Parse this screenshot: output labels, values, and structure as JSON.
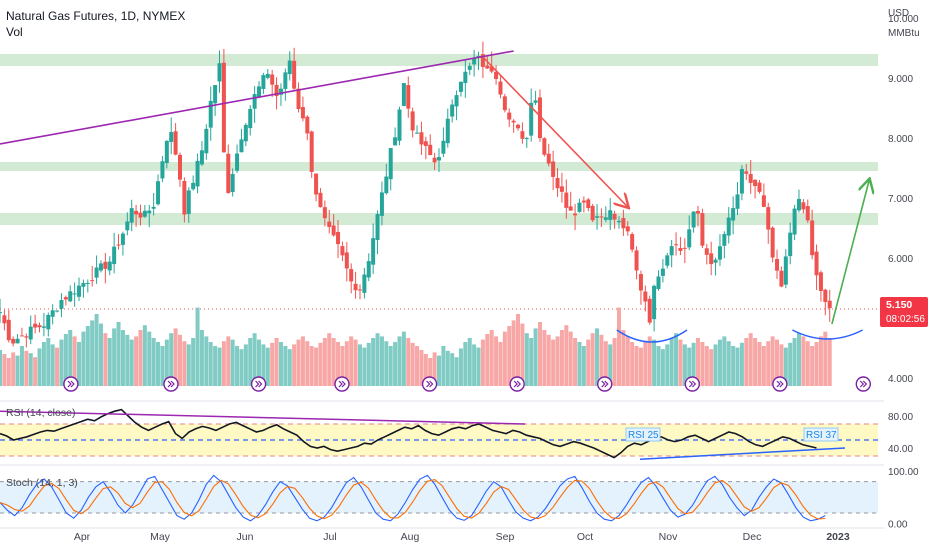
{
  "header": {
    "title": "Natural Gas Futures, 1D, NYMEX",
    "volume_label": "Vol",
    "currency": "USD",
    "unit": "MMBtu"
  },
  "price_badge": {
    "price": "5.150",
    "countdown": "08:02:56",
    "color": "#f23645"
  },
  "rsi_pane": {
    "label": "RSI (14, close)",
    "annotations": [
      "RSI 25",
      "RSI 37"
    ],
    "ticks": [
      "80.00",
      "40.00"
    ]
  },
  "stoch_pane": {
    "label": "Stoch (14, 1, 3)",
    "ticks": [
      "100.00",
      "0.00"
    ]
  },
  "colors": {
    "up": "#26a69a",
    "down": "#ef5350",
    "vol_up": "#80cbc4",
    "vol_down": "#f7a7a5",
    "zone": "#c8e6c9",
    "purple": "#9c27b0",
    "accent_blue": "#2962ff",
    "green_arrow": "#4caf50",
    "rsi_band": "#fff9c4",
    "stoch_band": "#e3f2fd"
  },
  "event_marker_icon": "dividend-arrow-icon",
  "chart_data": {
    "type": "candlestick",
    "title": "Natural Gas Futures, 1D, NYMEX",
    "ylabel": "USD MMBtu",
    "ylim": [
      3.8,
      10.3
    ],
    "y_ticks": [
      10.0,
      9.0,
      8.0,
      7.0,
      6.0,
      4.0
    ],
    "y_tick_labels": [
      "10.000",
      "9.000",
      "8.000",
      "7.000",
      "6.000",
      "4.000"
    ],
    "x_month_labels": [
      "Apr",
      "May",
      "Jun",
      "Jul",
      "Aug",
      "Sep",
      "Oct",
      "Nov",
      "Dec",
      "2023"
    ],
    "grid": false,
    "last_price": 5.15,
    "zones": [
      [
        9.2,
        9.4
      ],
      [
        7.45,
        7.6
      ],
      [
        6.55,
        6.75
      ]
    ],
    "close_path": [
      [
        0,
        5.1
      ],
      [
        5,
        4.6
      ],
      [
        12,
        4.75
      ],
      [
        20,
        4.9
      ],
      [
        28,
        5.3
      ],
      [
        35,
        5.5
      ],
      [
        42,
        5.7
      ],
      [
        50,
        5.95
      ],
      [
        57,
        6.5
      ],
      [
        60,
        6.8
      ],
      [
        66,
        6.7
      ],
      [
        70,
        6.9
      ],
      [
        77,
        8.2
      ],
      [
        81,
        7.6
      ],
      [
        84,
        6.8
      ],
      [
        88,
        7.3
      ],
      [
        92,
        7.8
      ],
      [
        96,
        8.6
      ],
      [
        100,
        9.2
      ],
      [
        103,
        7.0
      ],
      [
        107,
        7.6
      ],
      [
        111,
        8.2
      ],
      [
        116,
        8.7
      ],
      [
        122,
        9.1
      ],
      [
        126,
        8.7
      ],
      [
        129,
        8.9
      ],
      [
        132,
        9.3
      ],
      [
        135,
        8.6
      ],
      [
        139,
        8.3
      ],
      [
        142,
        7.5
      ],
      [
        145,
        6.9
      ],
      [
        149,
        6.5
      ],
      [
        155,
        6.1
      ],
      [
        160,
        5.6
      ],
      [
        164,
        5.5
      ],
      [
        168,
        6.0
      ],
      [
        172,
        6.7
      ],
      [
        176,
        7.4
      ],
      [
        180,
        8.1
      ],
      [
        184,
        8.9
      ],
      [
        187,
        8.3
      ],
      [
        190,
        8.0
      ],
      [
        194,
        7.8
      ],
      [
        198,
        7.6
      ],
      [
        202,
        7.9
      ],
      [
        206,
        8.6
      ],
      [
        210,
        9.0
      ],
      [
        213,
        9.1
      ],
      [
        216,
        9.3
      ],
      [
        219,
        9.3
      ],
      [
        222,
        9.1
      ],
      [
        225,
        9.2
      ],
      [
        228,
        8.8
      ],
      [
        232,
        8.3
      ],
      [
        236,
        8.1
      ],
      [
        240,
        8.0
      ],
      [
        243,
        9.0
      ],
      [
        246,
        8.0
      ],
      [
        250,
        7.6
      ],
      [
        254,
        7.2
      ],
      [
        258,
        6.9
      ],
      [
        262,
        6.8
      ],
      [
        266,
        7.0
      ],
      [
        270,
        6.7
      ],
      [
        274,
        6.7
      ],
      [
        277,
        6.8
      ],
      [
        281,
        6.6
      ],
      [
        285,
        6.5
      ],
      [
        288,
        6.1
      ],
      [
        291,
        5.6
      ],
      [
        294,
        5.3
      ],
      [
        296,
        5.0
      ],
      [
        299,
        5.7
      ],
      [
        302,
        5.9
      ],
      [
        305,
        6.2
      ],
      [
        308,
        6.3
      ],
      [
        311,
        6.0
      ],
      [
        314,
        6.5
      ],
      [
        317,
        6.9
      ],
      [
        320,
        6.2
      ],
      [
        323,
        6.0
      ],
      [
        326,
        5.9
      ],
      [
        329,
        6.3
      ],
      [
        332,
        6.6
      ],
      [
        335,
        6.9
      ],
      [
        338,
        7.4
      ],
      [
        341,
        7.3
      ],
      [
        344,
        7.2
      ],
      [
        347,
        7.0
      ],
      [
        350,
        6.4
      ],
      [
        353,
        5.8
      ],
      [
        356,
        5.5
      ],
      [
        359,
        6.2
      ],
      [
        362,
        6.9
      ],
      [
        365,
        6.9
      ],
      [
        368,
        6.6
      ],
      [
        371,
        5.8
      ],
      [
        374,
        5.4
      ],
      [
        377,
        5.2
      ],
      [
        379,
        5.15
      ]
    ],
    "volume_units": "relative 0-1",
    "volume": [
      0.45,
      0.4,
      0.35,
      0.42,
      0.38,
      0.5,
      0.44,
      0.41,
      0.36,
      0.47,
      0.55,
      0.6,
      0.52,
      0.48,
      0.58,
      0.65,
      0.7,
      0.62,
      0.55,
      0.68,
      0.75,
      0.82,
      0.9,
      0.78,
      0.66,
      0.6,
      0.72,
      0.8,
      0.7,
      0.64,
      0.58,
      0.62,
      0.7,
      0.76,
      0.68,
      0.6,
      0.55,
      0.5,
      0.58,
      0.66,
      0.72,
      0.64,
      0.56,
      0.52,
      0.6,
      0.98,
      0.7,
      0.62,
      0.55,
      0.5,
      0.48,
      0.56,
      0.62,
      0.58,
      0.5,
      0.46,
      0.52,
      0.6,
      0.66,
      0.58,
      0.52,
      0.48,
      0.54,
      0.6,
      0.55,
      0.5,
      0.46,
      0.52,
      0.58,
      0.62,
      0.56,
      0.5,
      0.48,
      0.54,
      0.6,
      0.66,
      0.6,
      0.55,
      0.5,
      0.56,
      0.62,
      0.58,
      0.52,
      0.48,
      0.54,
      0.6,
      0.66,
      0.62,
      0.56,
      0.5,
      0.55,
      0.62,
      0.68,
      0.6,
      0.54,
      0.5
    ],
    "overlays": [
      {
        "type": "trendline",
        "color": "purple",
        "from": [
          0,
          7.9
        ],
        "to": [
          234,
          9.45
        ]
      },
      {
        "type": "trendline",
        "color": "red",
        "from": [
          220,
          9.35
        ],
        "to": [
          286,
          6.85
        ],
        "arrow": true
      },
      {
        "type": "projection_arrow",
        "color": "green",
        "from": [
          379,
          4.9
        ],
        "to": [
          396,
          7.3
        ]
      },
      {
        "type": "arc",
        "color": "blue",
        "from": [
          281,
          4.8
        ],
        "to": [
          313,
          4.8
        ],
        "depth": 4.6
      },
      {
        "type": "arc",
        "color": "blue",
        "from": [
          361,
          4.8
        ],
        "to": [
          393,
          4.8
        ],
        "depth": 4.65
      }
    ],
    "rsi": {
      "ylim": [
        20,
        95
      ],
      "levels": [
        70,
        50,
        30
      ],
      "values": [
        58,
        55,
        50,
        52,
        54,
        57,
        60,
        62,
        61,
        64,
        67,
        70,
        73,
        76,
        74,
        79,
        83,
        86,
        88,
        80,
        72,
        66,
        62,
        66,
        70,
        73,
        58,
        52,
        60,
        64,
        67,
        65,
        62,
        66,
        70,
        72,
        68,
        64,
        60,
        62,
        66,
        69,
        64,
        60,
        56,
        48,
        42,
        40,
        42,
        38,
        36,
        38,
        40,
        42,
        46,
        45,
        50,
        54,
        58,
        62,
        66,
        64,
        68,
        62,
        58,
        56,
        60,
        64,
        66,
        64,
        68,
        70,
        66,
        62,
        60,
        58,
        62,
        60,
        56,
        54,
        52,
        48,
        44,
        42,
        45,
        48,
        46,
        43,
        40,
        36,
        32,
        28,
        34,
        42,
        46,
        44,
        48,
        52,
        54,
        50,
        48,
        50,
        54,
        56,
        52,
        48,
        52,
        56,
        60,
        58,
        54,
        48,
        44,
        42,
        46,
        50,
        54,
        52,
        48,
        44,
        42,
        40
      ]
    },
    "stoch": {
      "ylim": [
        -5,
        110
      ],
      "levels": [
        80,
        20
      ],
      "k": [
        40,
        25,
        15,
        30,
        55,
        75,
        85,
        70,
        45,
        20,
        10,
        25,
        50,
        70,
        80,
        60,
        35,
        20,
        35,
        60,
        85,
        90,
        65,
        40,
        15,
        8,
        20,
        45,
        75,
        92,
        80,
        55,
        30,
        12,
        5,
        15,
        35,
        60,
        80,
        72,
        50,
        28,
        10,
        5,
        12,
        30,
        55,
        78,
        88,
        70,
        45,
        20,
        8,
        5,
        18,
        40,
        65,
        85,
        92,
        75,
        50,
        25,
        10,
        6,
        15,
        38,
        62,
        80,
        70,
        45,
        22,
        10,
        5,
        12,
        28,
        50,
        72,
        85,
        90,
        68,
        42,
        20,
        8,
        5,
        15,
        35,
        58,
        78,
        88,
        72,
        48,
        25,
        12,
        18,
        35,
        60,
        82,
        90,
        75,
        50,
        30,
        15,
        25,
        50,
        70,
        85,
        78,
        55,
        30,
        12,
        5,
        8,
        15
      ]
    }
  }
}
